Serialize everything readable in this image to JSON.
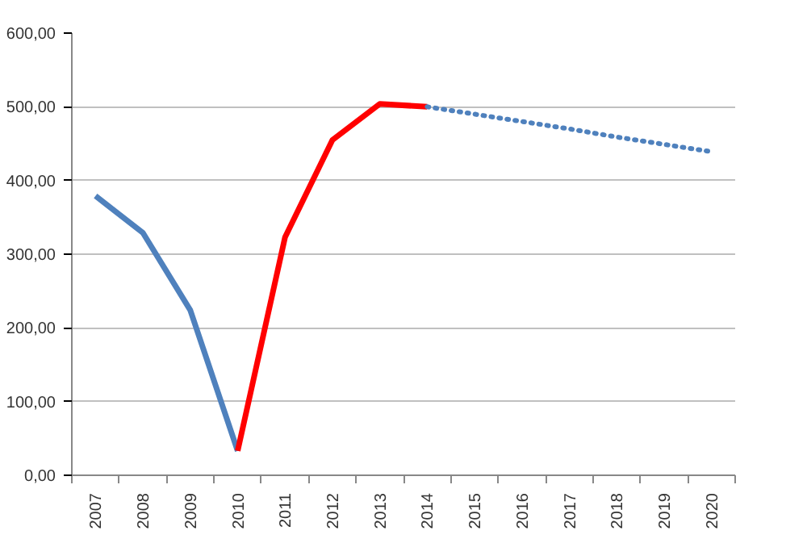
{
  "chart_data": {
    "type": "line",
    "categories": [
      "2007",
      "2008",
      "2009",
      "2010",
      "2011",
      "2012",
      "2013",
      "2014",
      "2015",
      "2016",
      "2017",
      "2018",
      "2019",
      "2020"
    ],
    "series": [
      {
        "color": "#4f81bd",
        "line_style": "solid",
        "values": [
          379,
          329,
          224,
          33,
          null,
          null,
          null,
          null,
          null,
          null,
          null,
          null,
          null,
          null
        ]
      },
      {
        "color": "#ff0000",
        "line_style": "solid",
        "values": [
          null,
          null,
          null,
          33,
          323,
          455,
          504,
          500,
          null,
          null,
          null,
          null,
          null,
          null
        ]
      },
      {
        "color": "#4f81bd",
        "line_style": "dotted",
        "values": [
          null,
          null,
          null,
          null,
          null,
          null,
          null,
          500,
          490,
          480,
          470,
          459,
          449,
          439
        ]
      }
    ],
    "ylim": [
      0,
      600
    ],
    "yticks": [
      {
        "value": 0,
        "label": "0,00"
      },
      {
        "value": 100,
        "label": "100,00"
      },
      {
        "value": 200,
        "label": "200,00"
      },
      {
        "value": 300,
        "label": "300,00"
      },
      {
        "value": 400,
        "label": "400,00"
      },
      {
        "value": 500,
        "label": "500,00"
      },
      {
        "value": 600,
        "label": "600,00"
      }
    ],
    "grid": "y",
    "marker": "none"
  }
}
